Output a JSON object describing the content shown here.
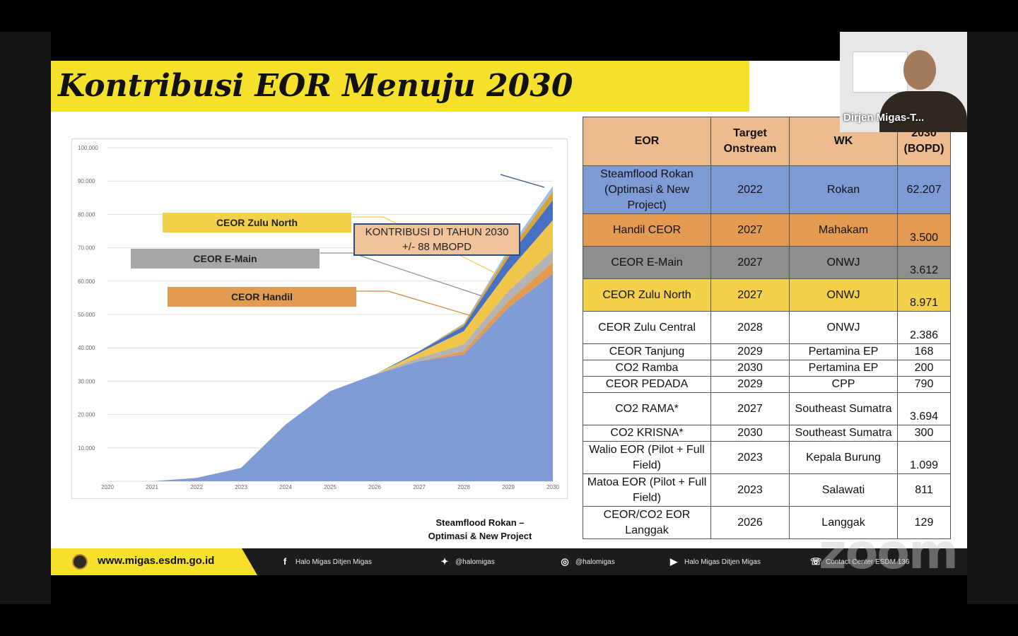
{
  "slide": {
    "title": "Kontribusi EOR Menuju 2030"
  },
  "chart_data": {
    "type": "area",
    "title": "",
    "xlabel": "",
    "ylabel": "",
    "x": [
      2020,
      2021,
      2022,
      2023,
      2024,
      2025,
      2026,
      2027,
      2028,
      2029,
      2030
    ],
    "ytick_labels": [
      "100.000",
      "90.000",
      "80.000",
      "70.000",
      "60.000",
      "50.000",
      "40.000",
      "30.000",
      "20.000",
      "10.000",
      ""
    ],
    "ylim": [
      0,
      100000
    ],
    "grid": true,
    "stacked": true,
    "series": [
      {
        "name": "Steamflood Rokan – Optimasi & New Project",
        "color": "#7f9bd6",
        "values": [
          0,
          0,
          1000,
          4000,
          17000,
          27000,
          32000,
          36000,
          38000,
          52000,
          62207
        ]
      },
      {
        "color": "#e39b52",
        "values": [
          0,
          0,
          0,
          0,
          0,
          0,
          0,
          0,
          1000,
          2000,
          3500
        ]
      },
      {
        "color": "#b4b4b4",
        "values": [
          0,
          0,
          0,
          0,
          0,
          0,
          0,
          1000,
          2000,
          3000,
          3612
        ]
      },
      {
        "color": "#f0c64a",
        "values": [
          0,
          0,
          0,
          0,
          0,
          0,
          0,
          1500,
          4000,
          6000,
          8971
        ]
      },
      {
        "color": "#4670c4",
        "values": [
          0,
          0,
          0,
          0,
          0,
          0,
          0,
          500,
          1500,
          4000,
          6000
        ]
      },
      {
        "color": "#d9a43a",
        "values": [
          0,
          0,
          0,
          0,
          0,
          0,
          0,
          0,
          500,
          1500,
          2700
        ]
      },
      {
        "color": "#9ec0e8",
        "values": [
          0,
          0,
          0,
          0,
          0,
          0,
          0,
          0,
          300,
          1000,
          1500
        ]
      }
    ],
    "annotations": {
      "callout_line1": "KONTRIBUSI DI TAHUN 2030",
      "callout_line2": "+/- 88 MBOPD",
      "zulu_north": "CEOR Zulu North",
      "e_main": "CEOR E-Main",
      "handil": "CEOR Handil",
      "steam_line1": "Steamflood  Rokan –",
      "steam_line2": "Optimasi & New Project"
    }
  },
  "table": {
    "headers": {
      "eor": "EOR",
      "target_line1": "Target",
      "target_line2": "Onstream",
      "wk": "WK",
      "bopd_line1": "2030",
      "bopd_line2": "(BOPD)"
    },
    "rows": [
      {
        "eor": "Steamflood Rokan (Optimasi & New Project)",
        "target": "2022",
        "wk": "Rokan",
        "bopd": "62.207",
        "color": "#7f9bd6"
      },
      {
        "eor": "Handil CEOR",
        "target": "2027",
        "wk": "Mahakam",
        "bopd": "3.500",
        "color": "#e39b52"
      },
      {
        "eor": "CEOR E-Main",
        "target": "2027",
        "wk": "ONWJ",
        "bopd": "3.612",
        "color": "#8e8e8e"
      },
      {
        "eor": "CEOR Zulu North",
        "target": "2027",
        "wk": "ONWJ",
        "bopd": "8.971",
        "color": "#f3d04a"
      },
      {
        "eor": "CEOR Zulu Central",
        "target": "2028",
        "wk": "ONWJ",
        "bopd": "2.386",
        "color": "#ffffff"
      },
      {
        "eor": "CEOR Tanjung",
        "target": "2029",
        "wk": "Pertamina EP",
        "bopd": "168",
        "color": "#ffffff"
      },
      {
        "eor": "CO2 Ramba",
        "target": "2030",
        "wk": "Pertamina EP",
        "bopd": "200",
        "color": "#ffffff"
      },
      {
        "eor": "CEOR PEDADA",
        "target": "2029",
        "wk": "CPP",
        "bopd": "790",
        "color": "#ffffff"
      },
      {
        "eor": "CO2 RAMA*",
        "target": "2027",
        "wk": "Southeast Sumatra",
        "bopd": "3.694",
        "color": "#ffffff"
      },
      {
        "eor": "CO2 KRISNA*",
        "target": "2030",
        "wk": "Southeast Sumatra",
        "bopd": "300",
        "color": "#ffffff"
      },
      {
        "eor": "Walio EOR (Pilot + Full Field)",
        "target": "2023",
        "wk": "Kepala Burung",
        "bopd": "1.099",
        "color": "#ffffff"
      },
      {
        "eor": "Matoa EOR (Pilot + Full Field)",
        "target": "2023",
        "wk": "Salawati",
        "bopd": "811",
        "color": "#ffffff"
      },
      {
        "eor": "CEOR/CO2 EOR Langgak",
        "target": "2026",
        "wk": "Langgak",
        "bopd": "129",
        "color": "#ffffff"
      }
    ]
  },
  "footer": {
    "url": "www.migas.esdm.go.id",
    "facebook": "Halo Migas Ditjen Migas",
    "twitter": "@halomigas",
    "instagram": "@halomigas",
    "youtube": "Halo Migas Ditjen Migas",
    "contact": "Contact Center ESDM 136"
  },
  "webcam": {
    "name": "Dirjen Migas-T..."
  },
  "zoom_watermark": "zoom"
}
